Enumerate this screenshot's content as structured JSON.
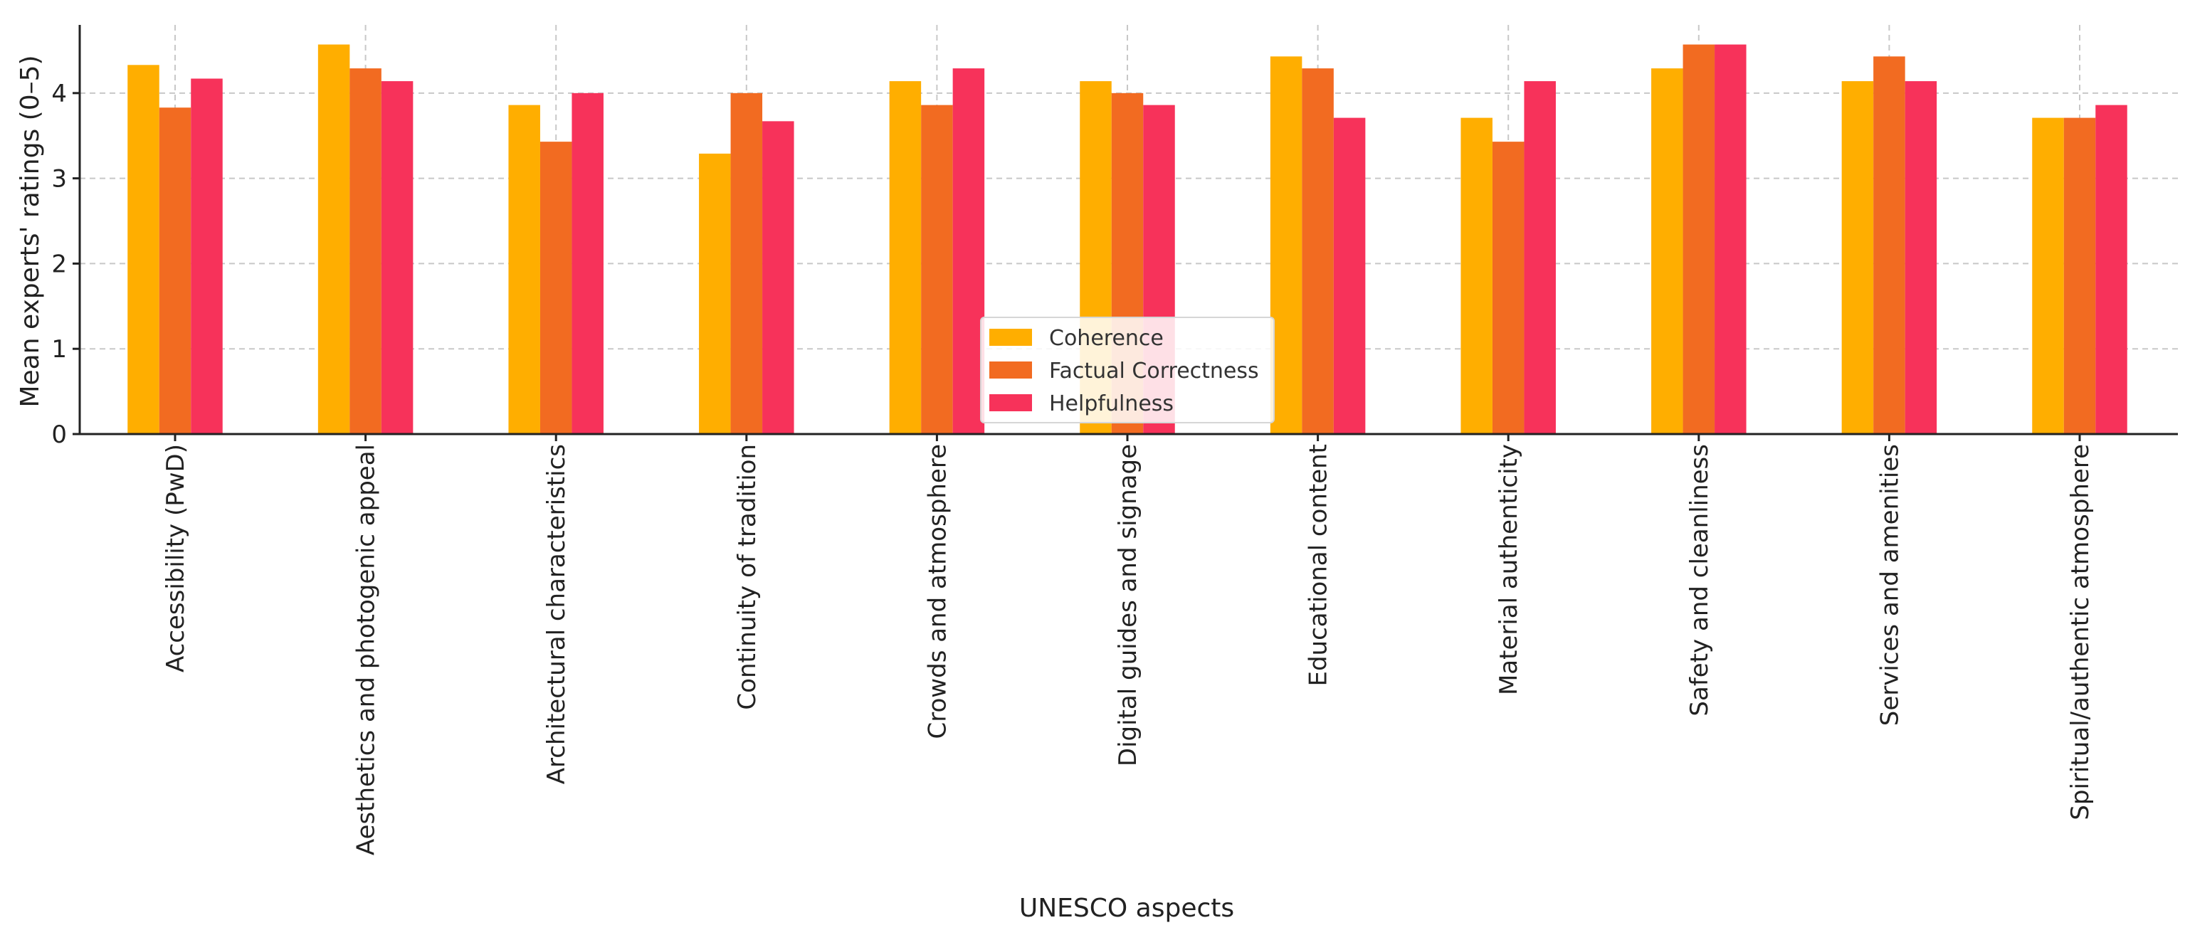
{
  "chart_data": {
    "type": "bar",
    "title": "",
    "xlabel": "UNESCO aspects",
    "ylabel": "Mean experts' ratings (0–5)",
    "ylim": [
      0,
      4.8
    ],
    "yticks": [
      "0",
      "1",
      "2",
      "3",
      "4"
    ],
    "grid": true,
    "legend_position": "center",
    "categories": [
      "Accessibility (PwD)",
      "Aesthetics and photogenic appeal",
      "Architectural characteristics",
      "Continuity of tradition",
      "Crowds and atmosphere",
      "Digital guides and signage",
      "Educational content",
      "Material authenticity",
      "Safety and cleanliness",
      "Services and amenities",
      "Spiritual/authentic atmosphere"
    ],
    "series": [
      {
        "name": "Coherence",
        "color": "#FFAE00",
        "values": [
          4.33,
          4.57,
          3.86,
          3.29,
          4.14,
          4.14,
          4.43,
          3.71,
          4.29,
          4.14,
          3.71
        ]
      },
      {
        "name": "Factual Correctness",
        "color": "#F26B21",
        "values": [
          3.83,
          4.29,
          3.43,
          4.0,
          3.86,
          4.0,
          4.29,
          3.43,
          4.57,
          4.43,
          3.71
        ]
      },
      {
        "name": "Helpfulness",
        "color": "#F7325A",
        "values": [
          4.17,
          4.14,
          4.0,
          3.67,
          4.29,
          3.86,
          3.71,
          4.14,
          4.57,
          4.14,
          3.86
        ]
      }
    ]
  }
}
